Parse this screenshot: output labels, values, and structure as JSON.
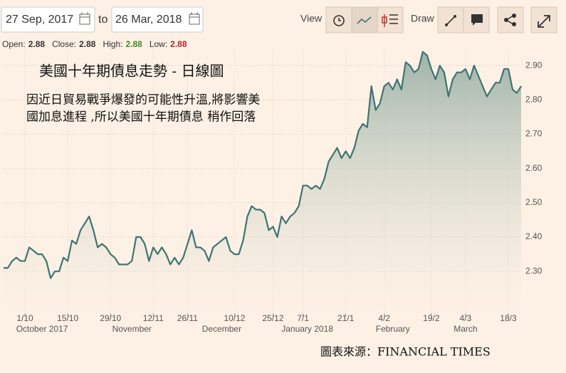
{
  "toolbar": {
    "from_date": "27 Sep, 2017",
    "to_label": "to",
    "to_date": "26 Mar, 2018",
    "view_label": "View",
    "draw_label": "Draw"
  },
  "ohlc": [
    {
      "label": "Open:",
      "value": "2.88"
    },
    {
      "label": "Close:",
      "value": "2.88"
    },
    {
      "label": "High:",
      "value": "2.88"
    },
    {
      "label": "Low:",
      "value": "2.88"
    }
  ],
  "chart_data": {
    "type": "area",
    "title": "美國十年期債息走勢 - 日線圖",
    "annotations": [
      "因近日貿易戰爭爆發的可能性升溫,將影響美",
      "國加息進程 ,所以美國十年期債息 稍作回落"
    ],
    "source": "圖表來源：FINANCIAL TIMES",
    "categories": [
      null,
      null,
      null,
      null,
      null,
      "1/10",
      null,
      null,
      null,
      null,
      null,
      null,
      null,
      null,
      null,
      "15/10",
      null,
      null,
      null,
      null,
      null,
      null,
      null,
      null,
      null,
      "29/10",
      null,
      null,
      null,
      null,
      null,
      null,
      null,
      null,
      null,
      "12/11",
      null,
      null,
      null,
      null,
      null,
      null,
      null,
      "26/11",
      null,
      null,
      null,
      null,
      null,
      null,
      null,
      null,
      null,
      null,
      "10/12",
      null,
      null,
      null,
      null,
      null,
      null,
      null,
      null,
      "25/12",
      null,
      null,
      null,
      null,
      null,
      null,
      "7/1",
      null,
      null,
      null,
      null,
      null,
      null,
      null,
      null,
      null,
      "21/1",
      null,
      null,
      null,
      null,
      null,
      null,
      null,
      null,
      "4/2",
      null,
      null,
      null,
      null,
      null,
      null,
      null,
      null,
      null,
      null,
      "19/2",
      null,
      null,
      null,
      null,
      null,
      null,
      null,
      "4/3",
      null,
      null,
      null,
      null,
      null,
      null,
      null,
      null,
      null,
      "18/3",
      null,
      null,
      null
    ],
    "category_groups": [
      null,
      null,
      null,
      null,
      null,
      null,
      null,
      null,
      null,
      "October 2017",
      null,
      null,
      null,
      null,
      null,
      null,
      null,
      null,
      null,
      null,
      null,
      null,
      null,
      null,
      null,
      null,
      null,
      null,
      null,
      null,
      "November",
      null,
      null,
      null,
      null,
      null,
      null,
      null,
      null,
      null,
      null,
      null,
      null,
      null,
      null,
      null,
      null,
      null,
      null,
      null,
      null,
      "December",
      null,
      null,
      null,
      null,
      null,
      null,
      null,
      null,
      null,
      null,
      null,
      null,
      null,
      null,
      null,
      null,
      null,
      null,
      null,
      "January 2018",
      null,
      null,
      null,
      null,
      null,
      null,
      null,
      null,
      null,
      null,
      null,
      null,
      null,
      null,
      null,
      null,
      null,
      null,
      null,
      "February",
      null,
      null,
      null,
      null,
      null,
      null,
      null,
      null,
      null,
      null,
      null,
      null,
      null,
      null,
      null,
      null,
      "March",
      null,
      null,
      null,
      null,
      null,
      null,
      null,
      null,
      null,
      null,
      null,
      null,
      null
    ],
    "series": [
      {
        "color": "#3d7472",
        "values": [
          2.31,
          2.31,
          2.33,
          2.34,
          2.33,
          2.33,
          2.37,
          2.36,
          2.35,
          2.35,
          2.33,
          2.28,
          2.3,
          2.3,
          2.34,
          2.33,
          2.39,
          2.38,
          2.42,
          2.44,
          2.46,
          2.42,
          2.37,
          2.38,
          2.37,
          2.35,
          2.34,
          2.32,
          2.32,
          2.32,
          2.33,
          2.4,
          2.4,
          2.38,
          2.33,
          2.37,
          2.35,
          2.37,
          2.35,
          2.32,
          2.34,
          2.32,
          2.34,
          2.38,
          2.42,
          2.37,
          2.37,
          2.36,
          2.33,
          2.37,
          2.38,
          2.39,
          2.4,
          2.36,
          2.35,
          2.35,
          2.39,
          2.46,
          2.49,
          2.48,
          2.48,
          2.47,
          2.42,
          2.43,
          2.4,
          2.46,
          2.44,
          2.46,
          2.47,
          2.49,
          2.55,
          2.55,
          2.54,
          2.55,
          2.54,
          2.57,
          2.62,
          2.64,
          2.66,
          2.63,
          2.65,
          2.63,
          2.66,
          2.71,
          2.73,
          2.72,
          2.84,
          2.77,
          2.79,
          2.84,
          2.85,
          2.83,
          2.86,
          2.83,
          2.91,
          2.9,
          2.88,
          2.89,
          2.94,
          2.93,
          2.89,
          2.86,
          2.9,
          2.88,
          2.81,
          2.86,
          2.88,
          2.88,
          2.89,
          2.86,
          2.9,
          2.87,
          2.84,
          2.81,
          2.83,
          2.85,
          2.85,
          2.89,
          2.89,
          2.83,
          2.82,
          2.84
        ]
      }
    ],
    "ylim": [
      2.18,
      2.95
    ],
    "yticks": [
      {
        "value": 2.3,
        "label": "2.30"
      },
      {
        "value": 2.4,
        "label": "2.40"
      },
      {
        "value": 2.5,
        "label": "2.50"
      },
      {
        "value": 2.6,
        "label": "2.60"
      },
      {
        "value": 2.7,
        "label": "2.70"
      },
      {
        "value": 2.8,
        "label": "2.80"
      },
      {
        "value": 2.9,
        "label": "2.90"
      }
    ],
    "grid": true
  }
}
